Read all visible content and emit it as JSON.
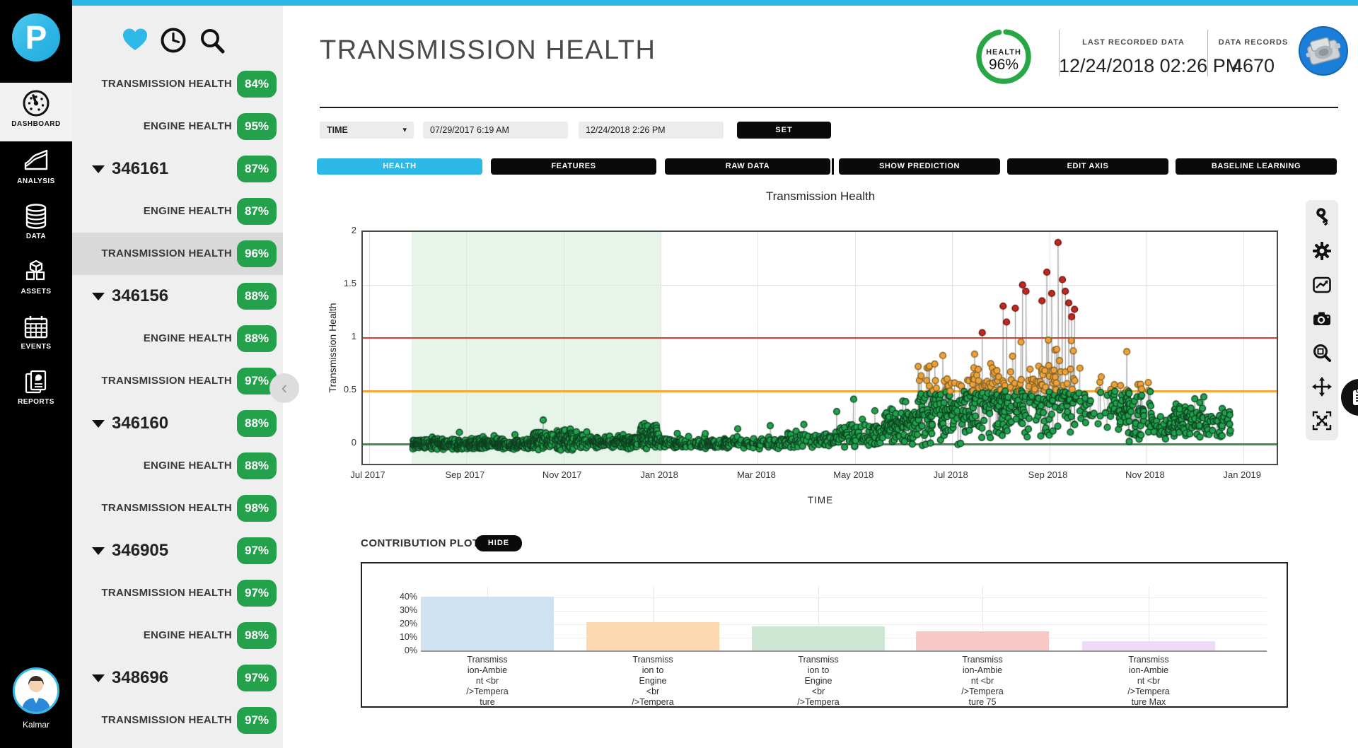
{
  "colors": {
    "accent_cyan": "#2cb9e8",
    "badge_green": "#23a24b",
    "health_ring_green": "#28a745",
    "machine_blue": "#1b7ed9",
    "sidebar_gray": "#efefef",
    "selected_gray": "#d9d9d9"
  },
  "nav": {
    "logo_letter": "P",
    "items": [
      {
        "label": "DASHBOARD",
        "icon": "gauge-icon",
        "active": true
      },
      {
        "label": "ANALYSIS",
        "icon": "area-chart-icon",
        "active": false
      },
      {
        "label": "DATA",
        "icon": "database-icon",
        "active": false
      },
      {
        "label": "ASSETS",
        "icon": "cubes-icon",
        "active": false
      },
      {
        "label": "EVENTS",
        "icon": "calendar-icon",
        "active": false
      },
      {
        "label": "REPORTS",
        "icon": "documents-icon",
        "active": false
      }
    ],
    "user_name": "Kalmar"
  },
  "sidebar": {
    "top_icons": [
      "heart-icon",
      "clock-icon",
      "search-icon"
    ],
    "items": [
      {
        "type": "child",
        "label": "TRANSMISSION HEALTH",
        "badge": "84%",
        "selected": false
      },
      {
        "type": "child",
        "label": "ENGINE HEALTH",
        "badge": "95%",
        "selected": false
      },
      {
        "type": "group",
        "label": "346161",
        "badge": "87%",
        "selected": false
      },
      {
        "type": "child",
        "label": "ENGINE HEALTH",
        "badge": "87%",
        "selected": false
      },
      {
        "type": "child",
        "label": "TRANSMISSION HEALTH",
        "badge": "96%",
        "selected": true
      },
      {
        "type": "group",
        "label": "346156",
        "badge": "88%",
        "selected": false
      },
      {
        "type": "child",
        "label": "ENGINE HEALTH",
        "badge": "88%",
        "selected": false
      },
      {
        "type": "child",
        "label": "TRANSMISSION HEALTH",
        "badge": "97%",
        "selected": false
      },
      {
        "type": "group",
        "label": "346160",
        "badge": "88%",
        "selected": false
      },
      {
        "type": "child",
        "label": "ENGINE HEALTH",
        "badge": "88%",
        "selected": false
      },
      {
        "type": "child",
        "label": "TRANSMISSION HEALTH",
        "badge": "98%",
        "selected": false
      },
      {
        "type": "group",
        "label": "346905",
        "badge": "97%",
        "selected": false
      },
      {
        "type": "child",
        "label": "TRANSMISSION HEALTH",
        "badge": "97%",
        "selected": false
      },
      {
        "type": "child",
        "label": "ENGINE HEALTH",
        "badge": "98%",
        "selected": false
      },
      {
        "type": "group",
        "label": "348696",
        "badge": "97%",
        "selected": false
      },
      {
        "type": "child",
        "label": "TRANSMISSION HEALTH",
        "badge": "97%",
        "selected": false
      }
    ]
  },
  "header": {
    "title": "TRANSMISSION HEALTH",
    "health_label": "HEALTH",
    "health_value": "96%",
    "health_percent": 96,
    "last_recorded_label": "LAST RECORDED DATA",
    "last_recorded_value": "12/24/2018 02:26 PM",
    "data_records_label": "DATA RECORDS",
    "data_records_value": "4670"
  },
  "filters": {
    "dropdown_value": "TIME",
    "start_value": "07/29/2017 6:19 AM",
    "end_value": "12/24/2018 2:26 PM",
    "set_label": "SET"
  },
  "tabs": {
    "left": [
      {
        "label": "HEALTH",
        "active": true
      },
      {
        "label": "FEATURES",
        "active": false
      },
      {
        "label": "RAW DATA",
        "active": false
      }
    ],
    "right": [
      {
        "label": "SHOW PREDICTION",
        "active": false
      },
      {
        "label": "EDIT AXIS",
        "active": false
      },
      {
        "label": "BASELINE LEARNING",
        "active": false
      }
    ]
  },
  "chart_data": {
    "type": "scatter",
    "title": "Transmission Health",
    "xlabel": "TIME",
    "ylabel": "Transmission Health",
    "x_ticks": [
      "Jul 2017",
      "Sep 2017",
      "Nov 2017",
      "Jan 2018",
      "Mar 2018",
      "May 2018",
      "Jul 2018",
      "Sep 2018",
      "Nov 2018",
      "Jan 2019"
    ],
    "y_ticks": [
      2,
      1.5,
      1,
      0.5,
      0
    ],
    "ylim": [
      -0.21,
      2
    ],
    "months_per_tick": 2,
    "baseline_region_months": [
      0.87,
      6.0
    ],
    "threshold_lines": [
      {
        "value": 1.0,
        "color": "#e23a2e",
        "px": 2
      },
      {
        "value": 0.5,
        "color": "#f5a733",
        "px": 3
      },
      {
        "value": 0.0,
        "color": "#3f8f4f",
        "px": 3
      }
    ],
    "thresholds": {
      "warning": 0.5,
      "critical": 1.0
    },
    "point_colors": {
      "normal": "#1fa34c",
      "normal_edge": "#0e4020",
      "warning": "#f0a136",
      "warning_edge": "#7d6026",
      "critical": "#c4271d",
      "critical_edge": "#58100a"
    },
    "seed": 42,
    "segments": [
      [
        0.9,
        3.4,
        500,
        0.0,
        0.055
      ],
      [
        3.4,
        4.3,
        150,
        0.04,
        0.11
      ],
      [
        4.3,
        5.55,
        190,
        0.02,
        0.07
      ],
      [
        5.55,
        6.05,
        90,
        0.06,
        0.13
      ],
      [
        6.05,
        7.3,
        120,
        0.0,
        0.05
      ],
      [
        7.3,
        8.6,
        110,
        0.01,
        0.06
      ],
      [
        8.6,
        9.6,
        70,
        0.03,
        0.08
      ],
      [
        9.6,
        10.6,
        80,
        0.09,
        0.13
      ],
      [
        10.6,
        11.3,
        90,
        0.17,
        0.2
      ],
      [
        11.3,
        12.3,
        140,
        0.3,
        0.33
      ],
      [
        12.3,
        13.3,
        150,
        0.38,
        0.36
      ],
      [
        13.3,
        14.55,
        150,
        0.42,
        0.38
      ],
      [
        14.6,
        15.2,
        26,
        0.3,
        0.3
      ],
      [
        15.25,
        16.1,
        95,
        0.3,
        0.3
      ],
      [
        16.1,
        16.5,
        28,
        0.15,
        0.15
      ],
      [
        16.5,
        17.75,
        115,
        0.22,
        0.18
      ]
    ],
    "outliers": [
      [
        12.62,
        1.05
      ],
      [
        13.05,
        1.3
      ],
      [
        13.12,
        1.15
      ],
      [
        13.3,
        1.28
      ],
      [
        13.45,
        1.5
      ],
      [
        13.52,
        1.44
      ],
      [
        13.85,
        1.35
      ],
      [
        13.95,
        1.62
      ],
      [
        14.05,
        1.42
      ],
      [
        14.18,
        1.9
      ],
      [
        14.27,
        1.55
      ],
      [
        14.33,
        1.44
      ],
      [
        14.4,
        1.33
      ],
      [
        14.46,
        1.2
      ],
      [
        14.52,
        1.27
      ]
    ]
  },
  "toolbar": {
    "icons": [
      "key-icon",
      "gear-icon",
      "edit-chart-icon",
      "camera-icon",
      "zoom-box-icon",
      "pan-icon",
      "autoscale-icon"
    ],
    "peek_icon": "clipboard-icon"
  },
  "contribution": {
    "label": "CONTRIBUTION PLOT:",
    "hide_label": "HIDE",
    "chart_data": {
      "type": "bar",
      "categories": [
        [
          "Transmiss",
          "ion-Ambie",
          "nt <br",
          "/>Tempera",
          "ture"
        ],
        [
          "Transmiss",
          "ion to",
          "Engine",
          "<br",
          "/>Tempera"
        ],
        [
          "Transmiss",
          "ion to",
          "Engine",
          "<br",
          "/>Tempera"
        ],
        [
          "Transmiss",
          "ion-Ambie",
          "nt <br",
          "/>Tempera",
          "ture 75"
        ],
        [
          "Transmiss",
          "ion-Ambie",
          "nt <br",
          "/>Tempera",
          "ture Max"
        ]
      ],
      "values": [
        40,
        21,
        18,
        14,
        7
      ],
      "bar_colors": [
        "#cfe2f1",
        "#fcd9b0",
        "#cde5d3",
        "#f7c8c6",
        "#eedafa"
      ],
      "y_ticks": [
        "40%",
        "30%",
        "20%",
        "10%",
        "0%"
      ],
      "ylabel": "",
      "xlabel": "",
      "ymax": 45,
      "grid": true
    }
  }
}
